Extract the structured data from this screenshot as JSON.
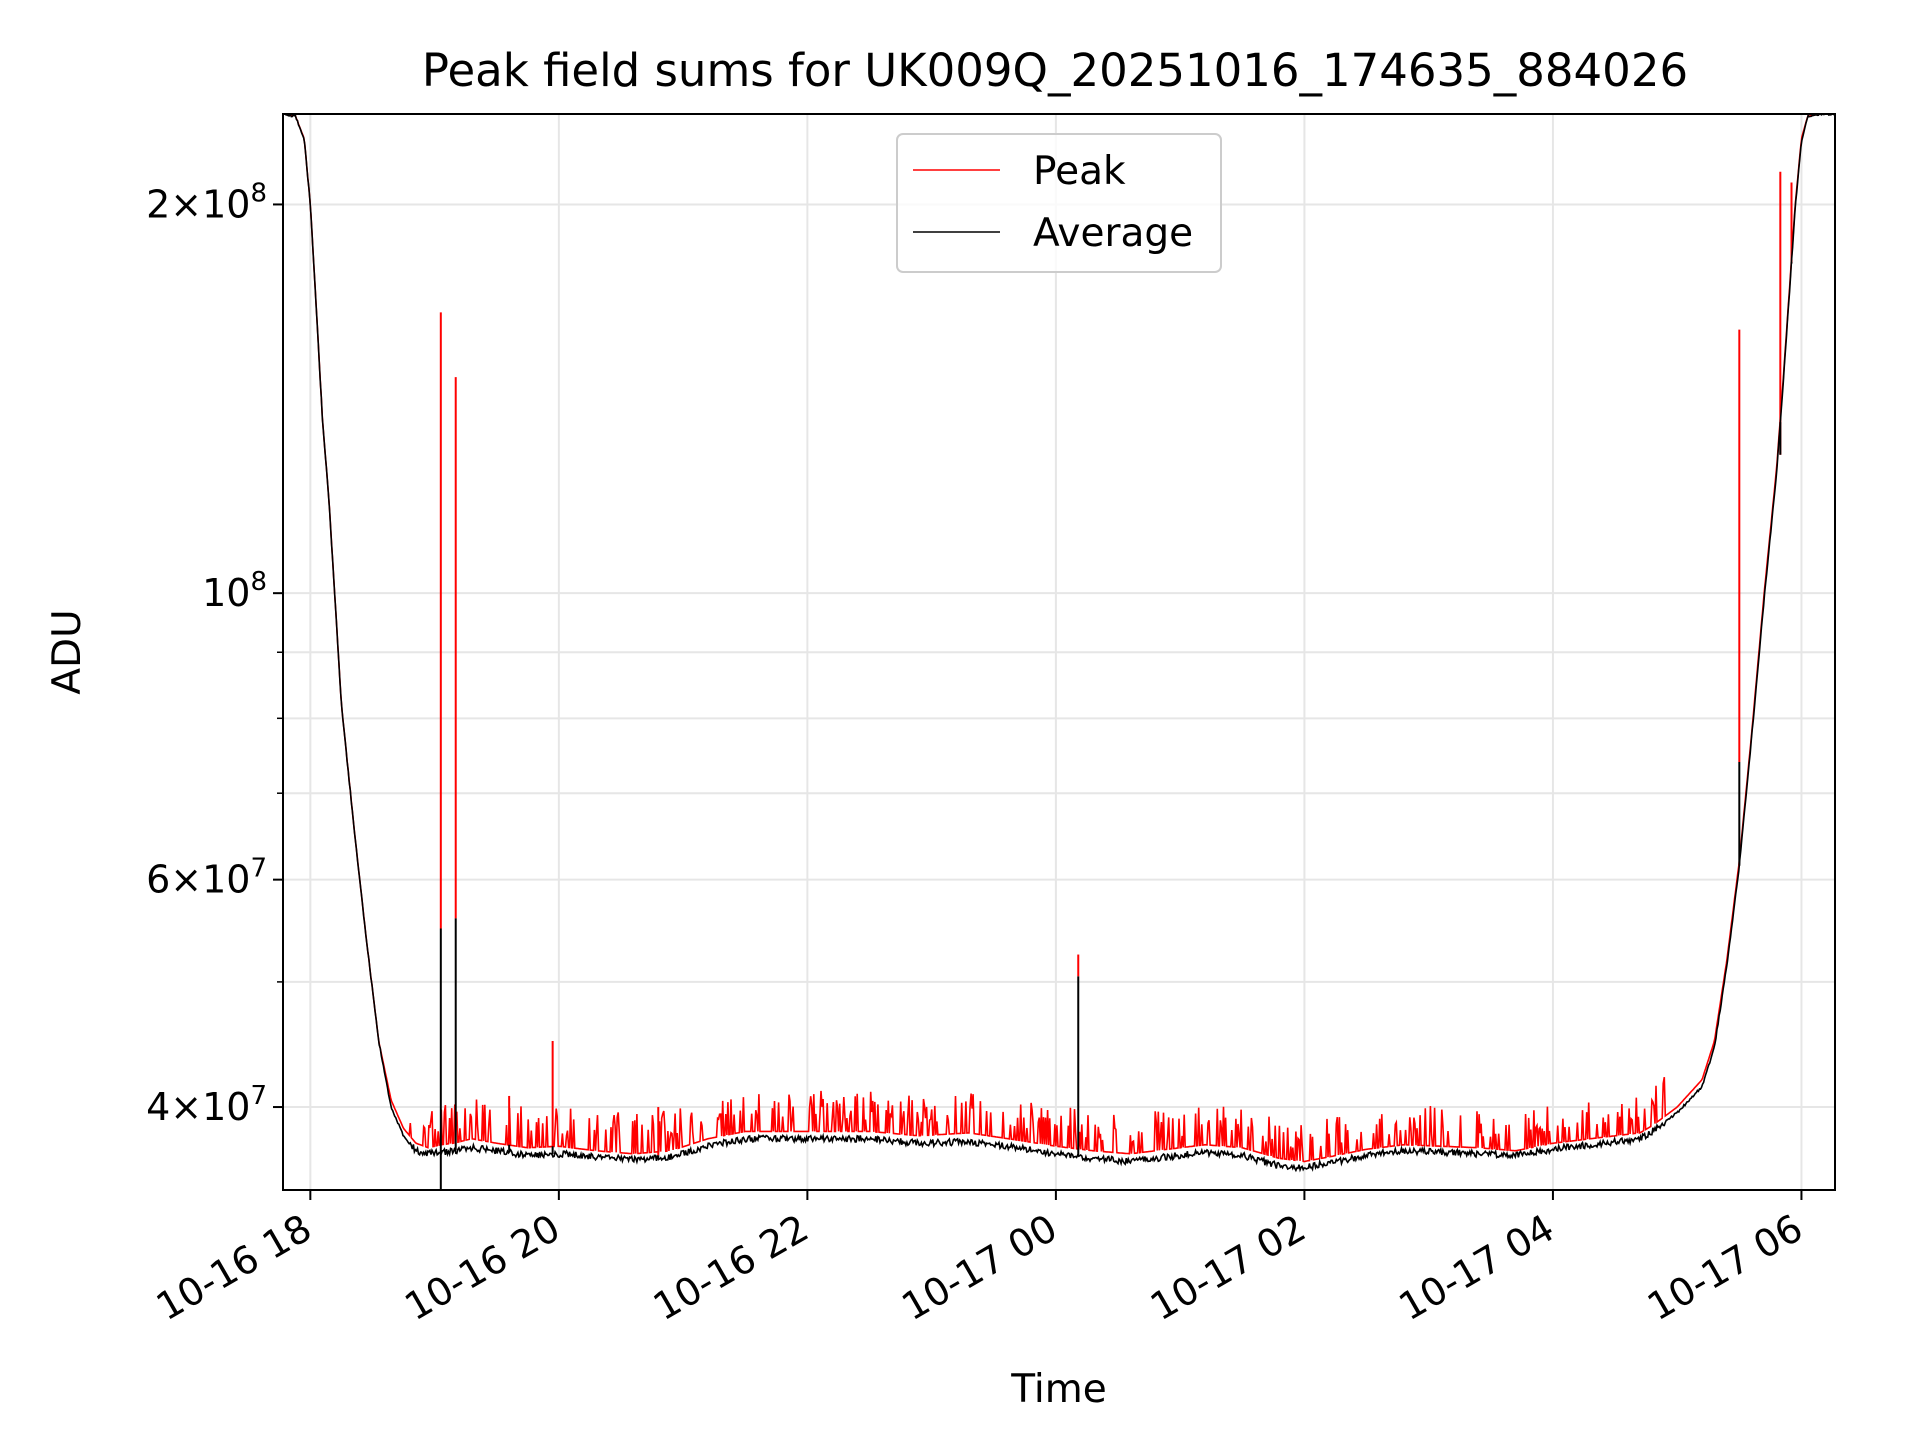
{
  "chart_data": {
    "type": "line",
    "title": "Peak field sums for UK009Q_20251016_174635_884026",
    "xlabel": "Time",
    "ylabel": "ADU",
    "yscale": "log",
    "ylim": [
      34500000,
      235000000
    ],
    "xlim_hours": [
      -0.22,
      12.27
    ],
    "grid": true,
    "legend_position": "upper-center",
    "x_ticks": [
      {
        "hour": 0,
        "label": "10-16 18"
      },
      {
        "hour": 2,
        "label": "10-16 20"
      },
      {
        "hour": 4,
        "label": "10-16 22"
      },
      {
        "hour": 6,
        "label": "10-17 00"
      },
      {
        "hour": 8,
        "label": "10-17 02"
      },
      {
        "hour": 10,
        "label": "10-17 04"
      },
      {
        "hour": 12,
        "label": "10-17 06"
      }
    ],
    "y_major_ticks": [
      {
        "value": 40000000,
        "mantissa": "4",
        "exponent": "7"
      },
      {
        "value": 60000000,
        "mantissa": "6",
        "exponent": "7"
      },
      {
        "value": 100000000,
        "mantissa": "",
        "exponent": "8"
      },
      {
        "value": 200000000,
        "mantissa": "2",
        "exponent": "8"
      }
    ],
    "y_minor_ticks": [
      50000000,
      70000000,
      80000000,
      90000000
    ],
    "series": [
      {
        "name": "Peak",
        "color": "#ff0000",
        "x_hours": [
          -0.22,
          -0.12,
          -0.05,
          0.0,
          0.05,
          0.1,
          0.15,
          0.25,
          0.35,
          0.45,
          0.55,
          0.65,
          0.75,
          0.85,
          0.95,
          1.05,
          1.15,
          1.3,
          1.5,
          1.75,
          2.0,
          2.3,
          2.6,
          2.9,
          3.2,
          3.5,
          3.8,
          4.1,
          4.5,
          4.9,
          5.3,
          5.7,
          6.0,
          6.3,
          6.6,
          6.9,
          7.2,
          7.5,
          7.8,
          8.0,
          8.2,
          8.5,
          8.8,
          9.1,
          9.4,
          9.7,
          10.0,
          10.3,
          10.5,
          10.7,
          10.8,
          11.0,
          11.2,
          11.3,
          11.4,
          11.5,
          11.6,
          11.7,
          11.8,
          11.85,
          11.9,
          11.95,
          12.0,
          12.05,
          12.15,
          12.27
        ],
        "values": [
          235000000,
          234000000,
          225000000,
          200000000,
          165000000,
          135000000,
          118000000,
          82000000,
          66000000,
          54000000,
          45000000,
          40500000,
          38500000,
          37500000,
          37200000,
          37400000,
          37500000,
          37800000,
          37500000,
          37200000,
          37300000,
          37000000,
          36800000,
          37000000,
          37800000,
          38300000,
          38300000,
          38300000,
          38300000,
          38000000,
          38200000,
          37700000,
          37300000,
          37000000,
          36800000,
          37100000,
          37400000,
          37200000,
          36500000,
          36300000,
          36600000,
          37100000,
          37400000,
          37300000,
          37200000,
          37000000,
          37500000,
          37800000,
          38000000,
          38200000,
          38700000,
          40000000,
          42000000,
          45000000,
          52000000,
          62000000,
          78000000,
          100000000,
          125000000,
          145000000,
          170000000,
          200000000,
          225000000,
          234000000,
          235000000,
          235000000
        ]
      },
      {
        "name": "Average",
        "color": "#000000",
        "x_hours": [
          -0.22,
          -0.12,
          -0.05,
          0.0,
          0.05,
          0.1,
          0.15,
          0.25,
          0.35,
          0.45,
          0.55,
          0.65,
          0.75,
          0.85,
          0.95,
          1.05,
          1.15,
          1.3,
          1.5,
          1.75,
          2.0,
          2.3,
          2.6,
          2.9,
          3.2,
          3.5,
          3.8,
          4.1,
          4.5,
          4.9,
          5.3,
          5.7,
          6.0,
          6.3,
          6.6,
          6.9,
          7.2,
          7.5,
          7.8,
          8.0,
          8.2,
          8.5,
          8.8,
          9.1,
          9.4,
          9.7,
          10.0,
          10.3,
          10.5,
          10.7,
          10.8,
          11.0,
          11.2,
          11.3,
          11.4,
          11.5,
          11.6,
          11.7,
          11.8,
          11.85,
          11.9,
          11.95,
          12.0,
          12.05,
          12.15,
          12.27
        ],
        "values": [
          235000000,
          234000000,
          225000000,
          200000000,
          165000000,
          135000000,
          118000000,
          82000000,
          66000000,
          54000000,
          45000000,
          40000000,
          38000000,
          37000000,
          36800000,
          36900000,
          37000000,
          37200000,
          37000000,
          36700000,
          36800000,
          36600000,
          36400000,
          36600000,
          37300000,
          37800000,
          37800000,
          37800000,
          37800000,
          37500000,
          37600000,
          37200000,
          36800000,
          36500000,
          36300000,
          36600000,
          36900000,
          36700000,
          36000000,
          35900000,
          36200000,
          36700000,
          37000000,
          36900000,
          36800000,
          36700000,
          37100000,
          37400000,
          37600000,
          37800000,
          38300000,
          39600000,
          41500000,
          44500000,
          51500000,
          61500000,
          77500000,
          99000000,
          124000000,
          144000000,
          169000000,
          199000000,
          224000000,
          234000000,
          235000000,
          235000000
        ]
      }
    ],
    "peak_spikes": [
      {
        "hour": 1.05,
        "peak": 165000000,
        "average": 55000000,
        "average_low": 34500000
      },
      {
        "hour": 1.17,
        "peak": 147000000,
        "average": 56000000
      },
      {
        "hour": 1.6,
        "peak": 40800000,
        "average": 37400000
      },
      {
        "hour": 1.95,
        "peak": 45000000,
        "average": 37300000
      },
      {
        "hour": 2.8,
        "peak": 40000000,
        "average": 36700000
      },
      {
        "hour": 6.18,
        "peak": 52500000,
        "average": 50500000
      },
      {
        "hour": 11.5,
        "peak": 160000000,
        "average": 74000000
      },
      {
        "hour": 11.83,
        "peak": 212000000,
        "average": 128000000
      },
      {
        "hour": 11.92,
        "peak": 208000000,
        "average": 180000000
      }
    ],
    "legend": [
      {
        "name": "Peak",
        "color": "#ff0000"
      },
      {
        "name": "Average",
        "color": "#000000"
      }
    ]
  }
}
